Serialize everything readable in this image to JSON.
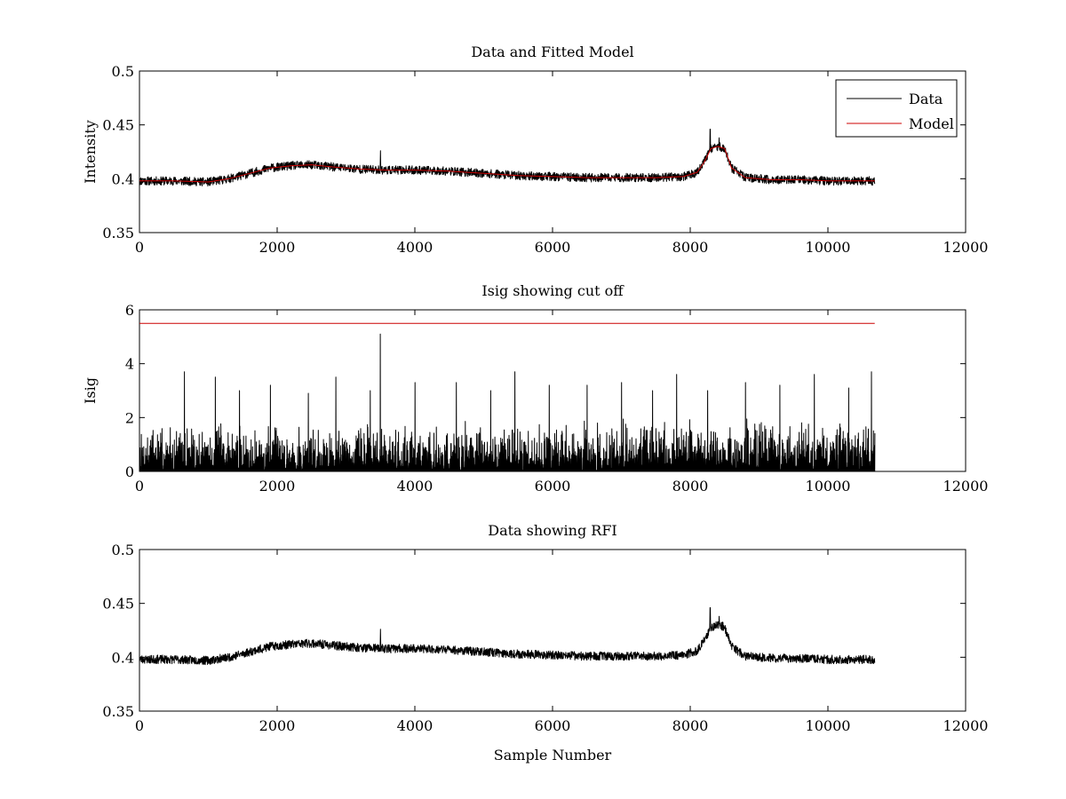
{
  "chart_data": [
    {
      "type": "line",
      "title": "Data and Fitted Model",
      "xlabel": "",
      "ylabel": "Intensity",
      "xlim": [
        0,
        12000
      ],
      "ylim": [
        0.35,
        0.5
      ],
      "xticks": [
        0,
        2000,
        4000,
        6000,
        8000,
        10000,
        12000
      ],
      "yticks": [
        0.35,
        0.4,
        0.45,
        0.5
      ],
      "xtick_labels": [
        "0",
        "2000",
        "4000",
        "6000",
        "8000",
        "10000",
        "12000"
      ],
      "ytick_labels": [
        "0.35",
        "0.4",
        "0.45",
        "0.5"
      ],
      "grid": false,
      "legend": {
        "placement": "top-right",
        "entries": [
          "Data",
          "Model"
        ]
      },
      "series": [
        {
          "name": "Data",
          "color": "#000000",
          "n_samples": 10680,
          "noise_amplitude": 0.004,
          "spikes": [
            {
              "x": 3500,
              "y": 0.426
            },
            {
              "x": 8290,
              "y": 0.446
            },
            {
              "x": 8420,
              "y": 0.438
            }
          ]
        },
        {
          "name": "Model",
          "color": "#cc0000",
          "x": [
            0,
            500,
            1000,
            1300,
            1600,
            1900,
            2200,
            2500,
            2800,
            3200,
            3600,
            4000,
            4500,
            5000,
            5500,
            6000,
            6500,
            7000,
            7500,
            7900,
            8100,
            8200,
            8300,
            8400,
            8500,
            8600,
            8800,
            9200,
            9600,
            10000,
            10680
          ],
          "y": [
            0.398,
            0.398,
            0.397,
            0.4,
            0.405,
            0.41,
            0.412,
            0.413,
            0.411,
            0.409,
            0.408,
            0.408,
            0.407,
            0.405,
            0.403,
            0.402,
            0.401,
            0.401,
            0.401,
            0.402,
            0.406,
            0.415,
            0.428,
            0.43,
            0.428,
            0.41,
            0.401,
            0.399,
            0.399,
            0.398,
            0.398
          ]
        }
      ]
    },
    {
      "type": "line",
      "title": "Isig showing cut off",
      "xlabel": "",
      "ylabel": "Isig",
      "xlim": [
        0,
        12000
      ],
      "ylim": [
        0,
        6
      ],
      "xticks": [
        0,
        2000,
        4000,
        6000,
        8000,
        10000,
        12000
      ],
      "yticks": [
        0,
        2,
        4,
        6
      ],
      "xtick_labels": [
        "0",
        "2000",
        "4000",
        "6000",
        "8000",
        "10000",
        "12000"
      ],
      "ytick_labels": [
        "0",
        "2",
        "4",
        "6"
      ],
      "grid": false,
      "series": [
        {
          "color": "#000000",
          "n_samples": 10680,
          "typical_max": 2.0,
          "spikes": [
            {
              "x": 650,
              "y": 3.7
            },
            {
              "x": 1100,
              "y": 3.5
            },
            {
              "x": 1450,
              "y": 3.0
            },
            {
              "x": 1900,
              "y": 3.2
            },
            {
              "x": 2450,
              "y": 2.9
            },
            {
              "x": 2850,
              "y": 3.5
            },
            {
              "x": 3350,
              "y": 3.0
            },
            {
              "x": 3495,
              "y": 5.1
            },
            {
              "x": 4000,
              "y": 3.3
            },
            {
              "x": 4600,
              "y": 3.3
            },
            {
              "x": 5100,
              "y": 3.0
            },
            {
              "x": 5450,
              "y": 3.7
            },
            {
              "x": 5950,
              "y": 3.2
            },
            {
              "x": 6500,
              "y": 3.2
            },
            {
              "x": 7000,
              "y": 3.3
            },
            {
              "x": 7450,
              "y": 3.0
            },
            {
              "x": 7800,
              "y": 3.6
            },
            {
              "x": 8250,
              "y": 3.0
            },
            {
              "x": 8800,
              "y": 3.3
            },
            {
              "x": 9300,
              "y": 3.2
            },
            {
              "x": 9800,
              "y": 3.6
            },
            {
              "x": 10300,
              "y": 3.1
            },
            {
              "x": 10630,
              "y": 3.7
            }
          ]
        },
        {
          "color": "#cc0000",
          "x": [
            0,
            10680
          ],
          "y": [
            5.5,
            5.5
          ]
        }
      ]
    },
    {
      "type": "line",
      "title": "Data showing RFI",
      "xlabel": "Sample Number",
      "ylabel": "",
      "xlim": [
        0,
        12000
      ],
      "ylim": [
        0.35,
        0.5
      ],
      "xticks": [
        0,
        2000,
        4000,
        6000,
        8000,
        10000,
        12000
      ],
      "yticks": [
        0.35,
        0.4,
        0.45,
        0.5
      ],
      "xtick_labels": [
        "0",
        "2000",
        "4000",
        "6000",
        "8000",
        "10000",
        "12000"
      ],
      "ytick_labels": [
        "0.35",
        "0.4",
        "0.45",
        "0.5"
      ],
      "grid": false,
      "series": [
        {
          "color": "#000000",
          "n_samples": 10680,
          "noise_amplitude": 0.004,
          "spikes": [
            {
              "x": 3500,
              "y": 0.426
            },
            {
              "x": 8290,
              "y": 0.446
            },
            {
              "x": 8420,
              "y": 0.438
            }
          ]
        }
      ]
    }
  ]
}
